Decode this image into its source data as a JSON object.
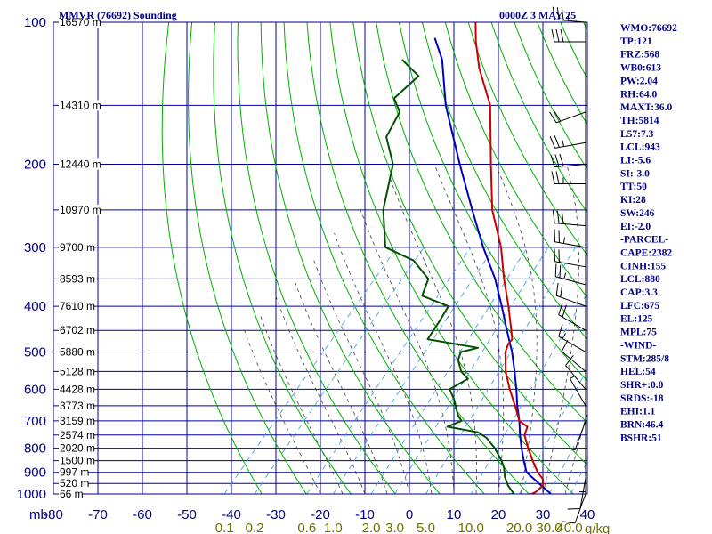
{
  "header": {
    "station": "MMVR (76692) Sounding",
    "time": "0000Z  3 MAY 25"
  },
  "colors": {
    "frame": "#000080",
    "grid": "#0000a0",
    "dry_adiabat": "#00b000",
    "moist_adiabat": "#404040",
    "mixing_ratio": "#4aa0e0",
    "temperature": "#cc0000",
    "dewpoint": "#005000",
    "parcel": "#0000c0",
    "mixing_label": "#707000"
  },
  "chart_data": {
    "type": "skew-t",
    "unit_label": "mb",
    "pressure_ticks": [
      100,
      200,
      300,
      400,
      500,
      600,
      700,
      800,
      900,
      1000
    ],
    "temperature_ticks": [
      -80,
      -70,
      -60,
      -50,
      -40,
      -30,
      -20,
      -10,
      0,
      10,
      20,
      30,
      40
    ],
    "temperature_tick_labels": [
      "-80",
      "-70",
      "-60",
      "-50",
      "-40",
      "-30",
      "-20",
      "-10",
      "0",
      "10",
      "20",
      "30",
      "40"
    ],
    "mixing_ratio_values": [
      0.1,
      0.2,
      0.6,
      1.0,
      2.0,
      3.0,
      5.0,
      10.0,
      20.0,
      30.0,
      40.0
    ],
    "mixing_ratio_labels": [
      "0.1",
      "0.2",
      "0.6",
      "1.0",
      "2.0",
      "3.0",
      "5.0",
      "10.0",
      "20.0",
      "30.0",
      "40.0"
    ],
    "mixing_ratio_unit": "g/kg",
    "height_labels": [
      {
        "p": 100,
        "text": "16570 m"
      },
      {
        "p": 150,
        "text": "14310 m"
      },
      {
        "p": 200,
        "text": "12440 m"
      },
      {
        "p": 250,
        "text": "10970 m"
      },
      {
        "p": 300,
        "text": "9700 m"
      },
      {
        "p": 350,
        "text": "8593 m"
      },
      {
        "p": 400,
        "text": "7610 m"
      },
      {
        "p": 450,
        "text": "6702 m"
      },
      {
        "p": 500,
        "text": "5880 m"
      },
      {
        "p": 550,
        "text": "5128 m"
      },
      {
        "p": 600,
        "text": "4428 m"
      },
      {
        "p": 650,
        "text": "3773 m"
      },
      {
        "p": 700,
        "text": "3159 m"
      },
      {
        "p": 750,
        "text": "2574 m"
      },
      {
        "p": 800,
        "text": "2020 m"
      },
      {
        "p": 850,
        "text": "1500 m"
      },
      {
        "p": 900,
        "text": "997 m"
      },
      {
        "p": 950,
        "text": "520 m"
      },
      {
        "p": 1000,
        "text": "66 m"
      }
    ],
    "temperature_profile": [
      {
        "p": 1002,
        "t": 26.5
      },
      {
        "p": 1000,
        "t": 27.5
      },
      {
        "p": 990,
        "t": 28
      },
      {
        "p": 960,
        "t": 28.3
      },
      {
        "p": 930,
        "t": 27
      },
      {
        "p": 900,
        "t": 24.5
      },
      {
        "p": 850,
        "t": 21
      },
      {
        "p": 800,
        "t": 17.5
      },
      {
        "p": 750,
        "t": 14
      },
      {
        "p": 720,
        "t": 13
      },
      {
        "p": 700,
        "t": 10
      },
      {
        "p": 650,
        "t": 6
      },
      {
        "p": 600,
        "t": 1.5
      },
      {
        "p": 550,
        "t": -3
      },
      {
        "p": 500,
        "t": -7
      },
      {
        "p": 480,
        "t": -8
      },
      {
        "p": 470,
        "t": -8
      },
      {
        "p": 450,
        "t": -10
      },
      {
        "p": 400,
        "t": -15.5
      },
      {
        "p": 350,
        "t": -22
      },
      {
        "p": 300,
        "t": -29
      },
      {
        "p": 250,
        "t": -38.5
      },
      {
        "p": 200,
        "t": -48
      },
      {
        "p": 150,
        "t": -60
      },
      {
        "p": 125,
        "t": -70
      },
      {
        "p": 110,
        "t": -76
      },
      {
        "p": 100,
        "t": -80
      }
    ],
    "dewpoint_profile": [
      {
        "p": 1002,
        "t": 22
      },
      {
        "p": 1000,
        "t": 23.5
      },
      {
        "p": 980,
        "t": 22
      },
      {
        "p": 960,
        "t": 20.5
      },
      {
        "p": 920,
        "t": 18
      },
      {
        "p": 880,
        "t": 16
      },
      {
        "p": 850,
        "t": 14
      },
      {
        "p": 800,
        "t": 10
      },
      {
        "p": 760,
        "t": 6
      },
      {
        "p": 740,
        "t": 3
      },
      {
        "p": 720,
        "t": -5
      },
      {
        "p": 700,
        "t": -3
      },
      {
        "p": 680,
        "t": -5
      },
      {
        "p": 630,
        "t": -9
      },
      {
        "p": 600,
        "t": -12
      },
      {
        "p": 570,
        "t": -10
      },
      {
        "p": 550,
        "t": -13
      },
      {
        "p": 520,
        "t": -16
      },
      {
        "p": 500,
        "t": -17
      },
      {
        "p": 490,
        "t": -14
      },
      {
        "p": 470,
        "t": -27
      },
      {
        "p": 430,
        "t": -28
      },
      {
        "p": 400,
        "t": -29
      },
      {
        "p": 380,
        "t": -37
      },
      {
        "p": 350,
        "t": -39
      },
      {
        "p": 320,
        "t": -46
      },
      {
        "p": 300,
        "t": -55
      },
      {
        "p": 250,
        "t": -63
      },
      {
        "p": 200,
        "t": -70
      },
      {
        "p": 175,
        "t": -77
      },
      {
        "p": 155,
        "t": -79
      },
      {
        "p": 145,
        "t": -83
      },
      {
        "p": 130,
        "t": -82
      },
      {
        "p": 120,
        "t": -89
      }
    ],
    "parcel_profile": [
      {
        "p": 1002,
        "t": 32
      },
      {
        "p": 950,
        "t": 27
      },
      {
        "p": 900,
        "t": 22
      },
      {
        "p": 850,
        "t": 19
      },
      {
        "p": 800,
        "t": 16
      },
      {
        "p": 750,
        "t": 13
      },
      {
        "p": 700,
        "t": 10
      },
      {
        "p": 650,
        "t": 6.5
      },
      {
        "p": 600,
        "t": 3
      },
      {
        "p": 550,
        "t": -1
      },
      {
        "p": 500,
        "t": -5.5
      },
      {
        "p": 450,
        "t": -11
      },
      {
        "p": 400,
        "t": -17
      },
      {
        "p": 350,
        "t": -24
      },
      {
        "p": 300,
        "t": -33
      },
      {
        "p": 250,
        "t": -43
      },
      {
        "p": 200,
        "t": -55
      },
      {
        "p": 150,
        "t": -70
      },
      {
        "p": 120,
        "t": -80
      },
      {
        "p": 108,
        "t": -86
      }
    ],
    "wind_barbs": [
      {
        "p": 100,
        "dir": 275,
        "spd": 35
      },
      {
        "p": 110,
        "dir": 270,
        "spd": 30
      },
      {
        "p": 155,
        "dir": 250,
        "spd": 20
      },
      {
        "p": 180,
        "dir": 260,
        "spd": 25
      },
      {
        "p": 200,
        "dir": 265,
        "spd": 30
      },
      {
        "p": 220,
        "dir": 270,
        "spd": 25
      },
      {
        "p": 270,
        "dir": 275,
        "spd": 30
      },
      {
        "p": 300,
        "dir": 280,
        "spd": 25
      },
      {
        "p": 330,
        "dir": 280,
        "spd": 20
      },
      {
        "p": 360,
        "dir": 285,
        "spd": 25
      },
      {
        "p": 400,
        "dir": 290,
        "spd": 20
      },
      {
        "p": 450,
        "dir": 300,
        "spd": 20
      },
      {
        "p": 500,
        "dir": 300,
        "spd": 15
      },
      {
        "p": 550,
        "dir": 310,
        "spd": 10
      },
      {
        "p": 600,
        "dir": 320,
        "spd": 10
      },
      {
        "p": 650,
        "dir": 330,
        "spd": 5
      },
      {
        "p": 700,
        "dir": 200,
        "spd": 5
      },
      {
        "p": 850,
        "dir": 180,
        "spd": 5
      },
      {
        "p": 925,
        "dir": 190,
        "spd": 10
      },
      {
        "p": 1000,
        "dir": 200,
        "spd": 10
      }
    ]
  },
  "stats": [
    "WMO:76692",
    "TP:121",
    "FRZ:568",
    "WB0:613",
    "PW:2.04",
    "RH:64.0",
    "MAXT:36.0",
    "TH:5814",
    "L57:7.3",
    "LCL:943",
    "LI:-5.6",
    "SI:-3.0",
    "TT:50",
    "KI:28",
    "SW:246",
    "EI:-2.0",
    "-PARCEL-",
    "CAPE:2382",
    "CINH:155",
    "LCL:880",
    "CAP:3.3",
    "LFC:675",
    "EL:125",
    "MPL:75",
    "-WIND-",
    "STM:285/8",
    "HEL:54",
    "SHR+:0.0",
    "SRDS:-18",
    "EHI:1.1",
    "BRN:46.4",
    "BSHR:51"
  ]
}
